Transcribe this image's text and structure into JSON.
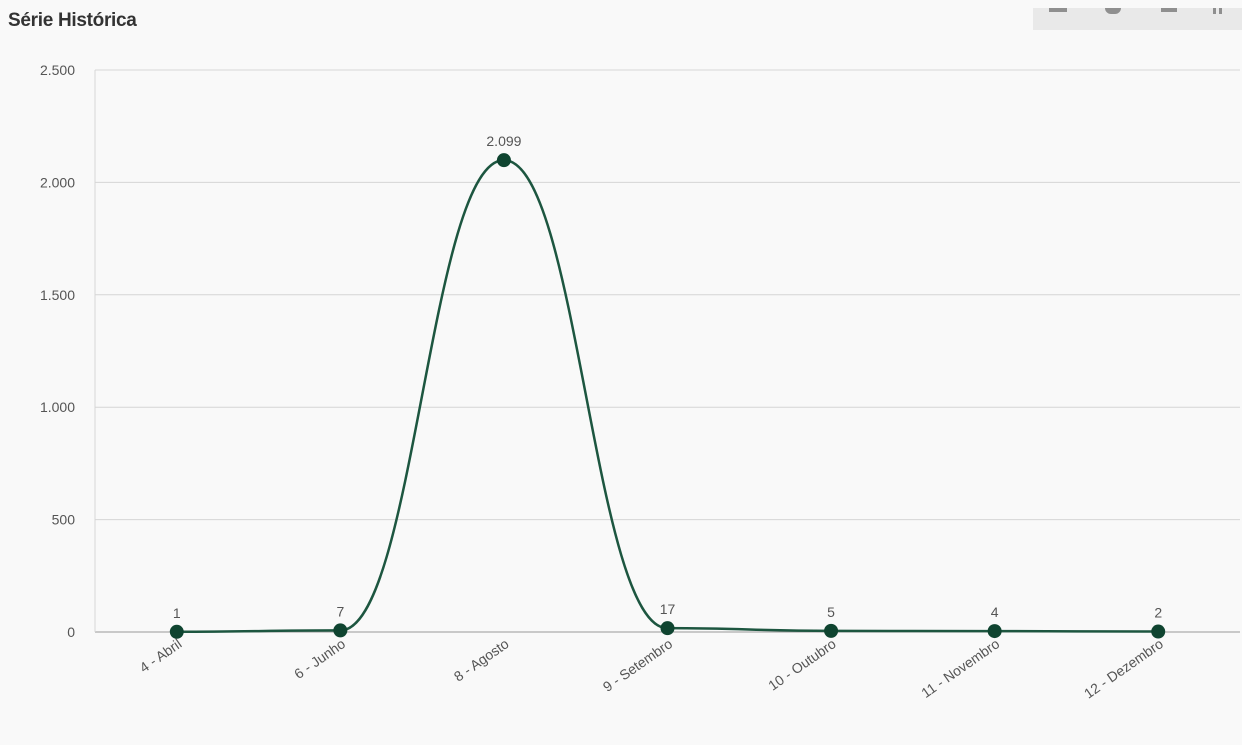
{
  "title": "Série Histórica",
  "toolbar": {
    "icons": [
      "menu-icon",
      "circle-icon",
      "download-icon",
      "more-icon"
    ]
  },
  "colors": {
    "line": "#1d5640",
    "point": "#0f4430",
    "grid": "#d6d6d6",
    "axis": "#999999",
    "text": "#555555"
  },
  "chart_data": {
    "type": "line",
    "smooth": true,
    "categories": [
      "4 - Abril",
      "6 - Junho",
      "8 - Agosto",
      "9 - Setembro",
      "10 - Outubro",
      "11 - Novembro",
      "12 - Dezembro"
    ],
    "values": [
      1,
      7,
      2099,
      17,
      5,
      4,
      2
    ],
    "data_labels": [
      "1",
      "7",
      "2.099",
      "17",
      "5",
      "4",
      "2"
    ],
    "y_ticks": [
      0,
      500,
      1000,
      1500,
      2000,
      2500
    ],
    "y_tick_labels": [
      "0",
      "500",
      "1.000",
      "1.500",
      "2.000",
      "2.500"
    ],
    "ylim": [
      0,
      2500
    ],
    "grid": true,
    "legend": "none"
  }
}
